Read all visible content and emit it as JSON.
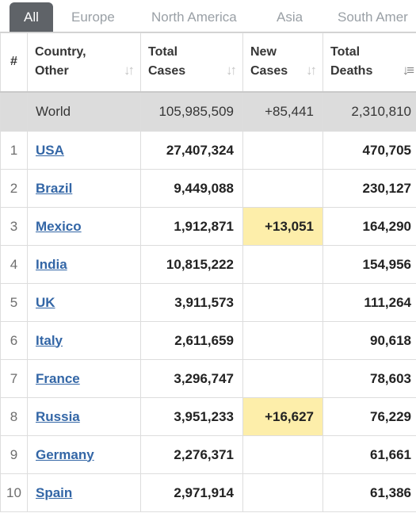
{
  "tabs": [
    {
      "label": "All",
      "active": true
    },
    {
      "label": "Europe",
      "active": false
    },
    {
      "label": "North America",
      "active": false
    },
    {
      "label": "Asia",
      "active": false
    },
    {
      "label": "South Amer",
      "active": false
    }
  ],
  "columns": {
    "rank": "#",
    "country_l1": "Country,",
    "country_l2": "Other",
    "total_cases_l1": "Total",
    "total_cases_l2": "Cases",
    "new_cases_l1": "New",
    "new_cases_l2": "Cases",
    "total_deaths_l1": "Total",
    "total_deaths_l2": "Deaths"
  },
  "world": {
    "label": "World",
    "total_cases": "105,985,509",
    "new_cases": "+85,441",
    "total_deaths": "2,310,810"
  },
  "rows": [
    {
      "rank": "1",
      "country": "USA",
      "total_cases": "27,407,324",
      "new_cases": "",
      "total_deaths": "470,705"
    },
    {
      "rank": "2",
      "country": "Brazil",
      "total_cases": "9,449,088",
      "new_cases": "",
      "total_deaths": "230,127"
    },
    {
      "rank": "3",
      "country": "Mexico",
      "total_cases": "1,912,871",
      "new_cases": "+13,051",
      "total_deaths": "164,290"
    },
    {
      "rank": "4",
      "country": "India",
      "total_cases": "10,815,222",
      "new_cases": "",
      "total_deaths": "154,956"
    },
    {
      "rank": "5",
      "country": "UK",
      "total_cases": "3,911,573",
      "new_cases": "",
      "total_deaths": "111,264"
    },
    {
      "rank": "6",
      "country": "Italy",
      "total_cases": "2,611,659",
      "new_cases": "",
      "total_deaths": "90,618"
    },
    {
      "rank": "7",
      "country": "France",
      "total_cases": "3,296,747",
      "new_cases": "",
      "total_deaths": "78,603"
    },
    {
      "rank": "8",
      "country": "Russia",
      "total_cases": "3,951,233",
      "new_cases": "+16,627",
      "total_deaths": "76,229"
    },
    {
      "rank": "9",
      "country": "Germany",
      "total_cases": "2,276,371",
      "new_cases": "",
      "total_deaths": "61,661"
    },
    {
      "rank": "10",
      "country": "Spain",
      "total_cases": "2,971,914",
      "new_cases": "",
      "total_deaths": "61,386"
    }
  ],
  "colors": {
    "active_tab": "#5f6368",
    "link": "#3366a6",
    "world_row_bg": "#dcdcdc",
    "new_cases_highlight": "#fdeeaa"
  },
  "icons": {
    "sort": "sort-arrows-icon",
    "sort_active": "sort-desc-icon"
  }
}
